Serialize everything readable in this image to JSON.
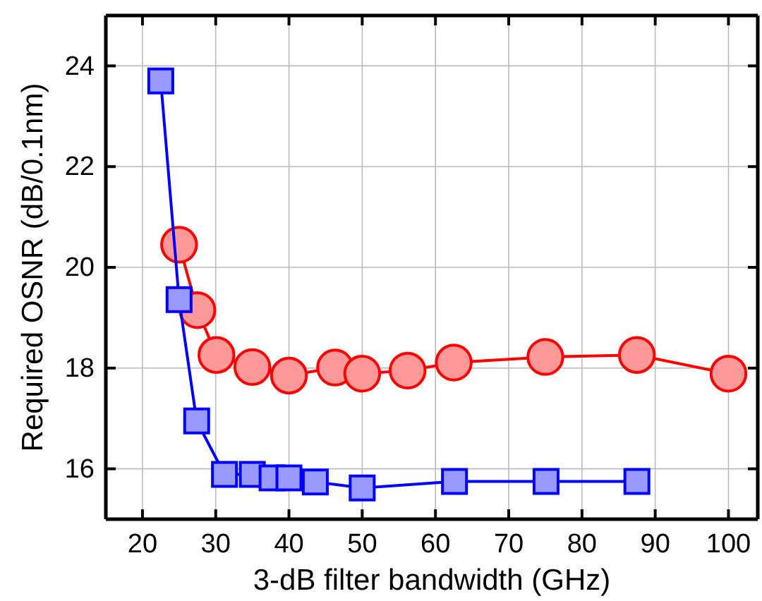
{
  "chart_data": {
    "type": "line",
    "xlabel": "3-dB filter bandwidth (GHz)",
    "ylabel": "Required OSNR (dB/0.1nm)",
    "xlim": [
      15,
      104
    ],
    "ylim": [
      15,
      25
    ],
    "xticks": [
      20,
      30,
      40,
      50,
      60,
      70,
      80,
      90,
      100
    ],
    "yticks": [
      16,
      18,
      20,
      22,
      24
    ],
    "grid": true,
    "line_style": "solid",
    "series": [
      {
        "color": "#ff0000",
        "marker": "circle",
        "x": [
          25,
          27.5,
          30.1,
          35,
          40,
          46.3,
          50,
          56.2,
          62.5,
          75,
          87.5,
          100
        ],
        "values": [
          20.45,
          19.15,
          18.26,
          18.02,
          17.85,
          18.01,
          17.89,
          17.95,
          18.11,
          18.22,
          18.26,
          17.89
        ]
      },
      {
        "color": "#0000ff",
        "marker": "square",
        "x": [
          22.5,
          25,
          27.4,
          31.2,
          35,
          37.7,
          40,
          43.6,
          50,
          62.6,
          75.1,
          87.5
        ],
        "values": [
          23.7,
          19.36,
          16.95,
          15.89,
          15.89,
          15.82,
          15.82,
          15.74,
          15.62,
          15.75,
          15.75,
          15.75
        ]
      }
    ]
  }
}
